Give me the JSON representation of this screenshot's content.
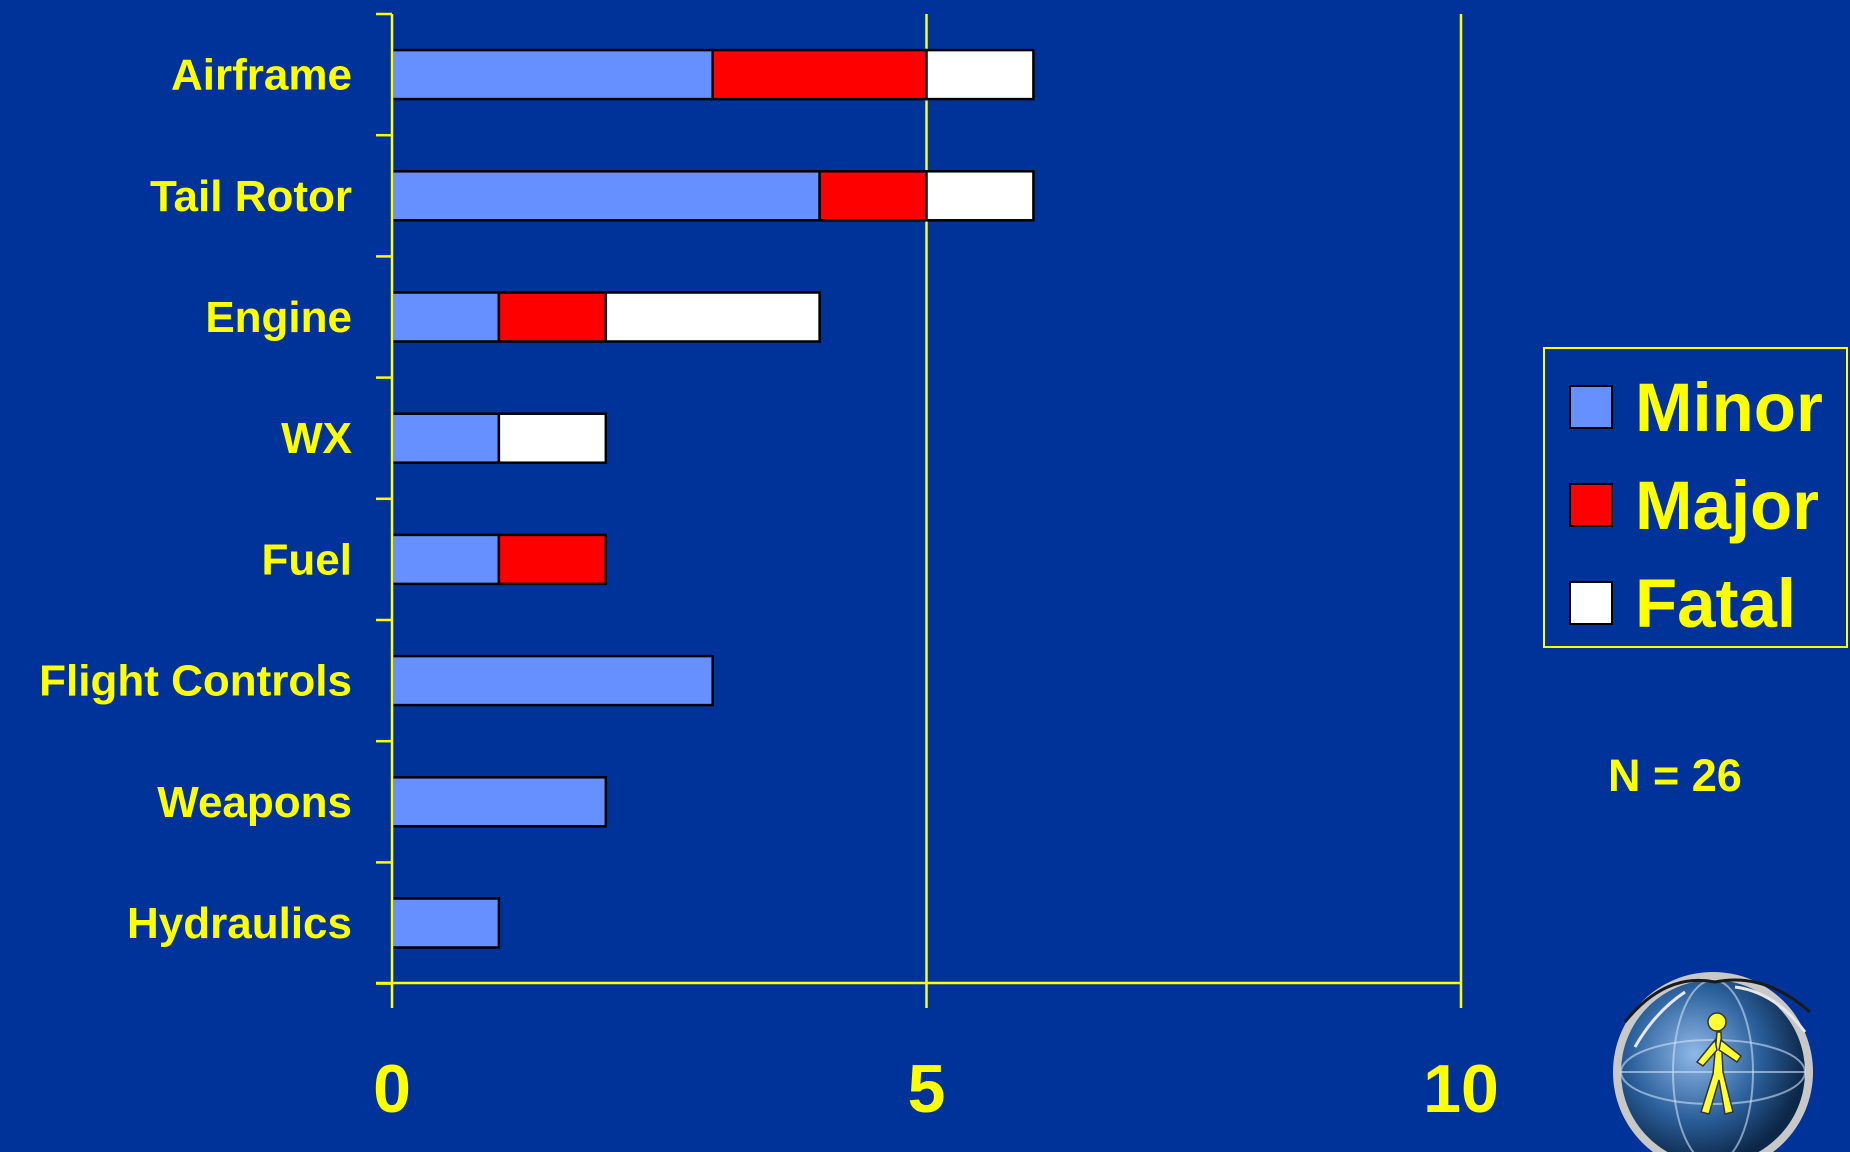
{
  "chart_data": {
    "type": "bar",
    "orientation": "horizontal",
    "stacked": true,
    "categories": [
      "Airframe",
      "Tail Rotor",
      "Engine",
      "WX",
      "Fuel",
      "Flight Controls",
      "Weapons",
      "Hydraulics"
    ],
    "series": [
      {
        "name": "Minor",
        "color": "#6690ff",
        "values": [
          3,
          4,
          1,
          1,
          1,
          3,
          2,
          1
        ]
      },
      {
        "name": "Major",
        "color": "#ff0000",
        "values": [
          2,
          1,
          1,
          0,
          1,
          0,
          0,
          0
        ]
      },
      {
        "name": "Fatal",
        "color": "#ffffff",
        "values": [
          1,
          1,
          2,
          1,
          0,
          0,
          0,
          0
        ]
      }
    ],
    "xlim": [
      0,
      10
    ],
    "xticks": [
      0,
      5,
      10
    ],
    "xtick_labels": [
      "0",
      "5",
      "10"
    ],
    "vertical_gridlines": [
      5,
      10
    ],
    "legend_position": "right",
    "annotation": "N = 26"
  },
  "colors": {
    "background": "#003399",
    "axis": "#ffff00",
    "text": "#ffff00",
    "bar_outline": "#000000"
  },
  "logo": {
    "icon": "globe-walking-figure-logo"
  }
}
